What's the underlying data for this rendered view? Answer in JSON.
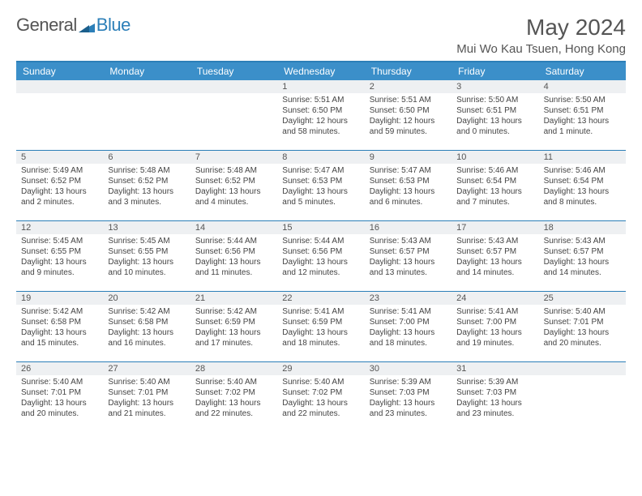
{
  "brand": {
    "part1": "General",
    "part2": "Blue"
  },
  "title": "May 2024",
  "location": "Mui Wo Kau Tsuen, Hong Kong",
  "colors": {
    "header_bg": "#3b8fc9",
    "rule": "#2c7fb8",
    "daynum_bg": "#eef0f2",
    "text": "#444"
  },
  "weekdays": [
    "Sunday",
    "Monday",
    "Tuesday",
    "Wednesday",
    "Thursday",
    "Friday",
    "Saturday"
  ],
  "weeks": [
    [
      {
        "n": "",
        "sr": "",
        "ss": "",
        "dl": ""
      },
      {
        "n": "",
        "sr": "",
        "ss": "",
        "dl": ""
      },
      {
        "n": "",
        "sr": "",
        "ss": "",
        "dl": ""
      },
      {
        "n": "1",
        "sr": "Sunrise: 5:51 AM",
        "ss": "Sunset: 6:50 PM",
        "dl": "Daylight: 12 hours and 58 minutes."
      },
      {
        "n": "2",
        "sr": "Sunrise: 5:51 AM",
        "ss": "Sunset: 6:50 PM",
        "dl": "Daylight: 12 hours and 59 minutes."
      },
      {
        "n": "3",
        "sr": "Sunrise: 5:50 AM",
        "ss": "Sunset: 6:51 PM",
        "dl": "Daylight: 13 hours and 0 minutes."
      },
      {
        "n": "4",
        "sr": "Sunrise: 5:50 AM",
        "ss": "Sunset: 6:51 PM",
        "dl": "Daylight: 13 hours and 1 minute."
      }
    ],
    [
      {
        "n": "5",
        "sr": "Sunrise: 5:49 AM",
        "ss": "Sunset: 6:52 PM",
        "dl": "Daylight: 13 hours and 2 minutes."
      },
      {
        "n": "6",
        "sr": "Sunrise: 5:48 AM",
        "ss": "Sunset: 6:52 PM",
        "dl": "Daylight: 13 hours and 3 minutes."
      },
      {
        "n": "7",
        "sr": "Sunrise: 5:48 AM",
        "ss": "Sunset: 6:52 PM",
        "dl": "Daylight: 13 hours and 4 minutes."
      },
      {
        "n": "8",
        "sr": "Sunrise: 5:47 AM",
        "ss": "Sunset: 6:53 PM",
        "dl": "Daylight: 13 hours and 5 minutes."
      },
      {
        "n": "9",
        "sr": "Sunrise: 5:47 AM",
        "ss": "Sunset: 6:53 PM",
        "dl": "Daylight: 13 hours and 6 minutes."
      },
      {
        "n": "10",
        "sr": "Sunrise: 5:46 AM",
        "ss": "Sunset: 6:54 PM",
        "dl": "Daylight: 13 hours and 7 minutes."
      },
      {
        "n": "11",
        "sr": "Sunrise: 5:46 AM",
        "ss": "Sunset: 6:54 PM",
        "dl": "Daylight: 13 hours and 8 minutes."
      }
    ],
    [
      {
        "n": "12",
        "sr": "Sunrise: 5:45 AM",
        "ss": "Sunset: 6:55 PM",
        "dl": "Daylight: 13 hours and 9 minutes."
      },
      {
        "n": "13",
        "sr": "Sunrise: 5:45 AM",
        "ss": "Sunset: 6:55 PM",
        "dl": "Daylight: 13 hours and 10 minutes."
      },
      {
        "n": "14",
        "sr": "Sunrise: 5:44 AM",
        "ss": "Sunset: 6:56 PM",
        "dl": "Daylight: 13 hours and 11 minutes."
      },
      {
        "n": "15",
        "sr": "Sunrise: 5:44 AM",
        "ss": "Sunset: 6:56 PM",
        "dl": "Daylight: 13 hours and 12 minutes."
      },
      {
        "n": "16",
        "sr": "Sunrise: 5:43 AM",
        "ss": "Sunset: 6:57 PM",
        "dl": "Daylight: 13 hours and 13 minutes."
      },
      {
        "n": "17",
        "sr": "Sunrise: 5:43 AM",
        "ss": "Sunset: 6:57 PM",
        "dl": "Daylight: 13 hours and 14 minutes."
      },
      {
        "n": "18",
        "sr": "Sunrise: 5:43 AM",
        "ss": "Sunset: 6:57 PM",
        "dl": "Daylight: 13 hours and 14 minutes."
      }
    ],
    [
      {
        "n": "19",
        "sr": "Sunrise: 5:42 AM",
        "ss": "Sunset: 6:58 PM",
        "dl": "Daylight: 13 hours and 15 minutes."
      },
      {
        "n": "20",
        "sr": "Sunrise: 5:42 AM",
        "ss": "Sunset: 6:58 PM",
        "dl": "Daylight: 13 hours and 16 minutes."
      },
      {
        "n": "21",
        "sr": "Sunrise: 5:42 AM",
        "ss": "Sunset: 6:59 PM",
        "dl": "Daylight: 13 hours and 17 minutes."
      },
      {
        "n": "22",
        "sr": "Sunrise: 5:41 AM",
        "ss": "Sunset: 6:59 PM",
        "dl": "Daylight: 13 hours and 18 minutes."
      },
      {
        "n": "23",
        "sr": "Sunrise: 5:41 AM",
        "ss": "Sunset: 7:00 PM",
        "dl": "Daylight: 13 hours and 18 minutes."
      },
      {
        "n": "24",
        "sr": "Sunrise: 5:41 AM",
        "ss": "Sunset: 7:00 PM",
        "dl": "Daylight: 13 hours and 19 minutes."
      },
      {
        "n": "25",
        "sr": "Sunrise: 5:40 AM",
        "ss": "Sunset: 7:01 PM",
        "dl": "Daylight: 13 hours and 20 minutes."
      }
    ],
    [
      {
        "n": "26",
        "sr": "Sunrise: 5:40 AM",
        "ss": "Sunset: 7:01 PM",
        "dl": "Daylight: 13 hours and 20 minutes."
      },
      {
        "n": "27",
        "sr": "Sunrise: 5:40 AM",
        "ss": "Sunset: 7:01 PM",
        "dl": "Daylight: 13 hours and 21 minutes."
      },
      {
        "n": "28",
        "sr": "Sunrise: 5:40 AM",
        "ss": "Sunset: 7:02 PM",
        "dl": "Daylight: 13 hours and 22 minutes."
      },
      {
        "n": "29",
        "sr": "Sunrise: 5:40 AM",
        "ss": "Sunset: 7:02 PM",
        "dl": "Daylight: 13 hours and 22 minutes."
      },
      {
        "n": "30",
        "sr": "Sunrise: 5:39 AM",
        "ss": "Sunset: 7:03 PM",
        "dl": "Daylight: 13 hours and 23 minutes."
      },
      {
        "n": "31",
        "sr": "Sunrise: 5:39 AM",
        "ss": "Sunset: 7:03 PM",
        "dl": "Daylight: 13 hours and 23 minutes."
      },
      {
        "n": "",
        "sr": "",
        "ss": "",
        "dl": ""
      }
    ]
  ]
}
